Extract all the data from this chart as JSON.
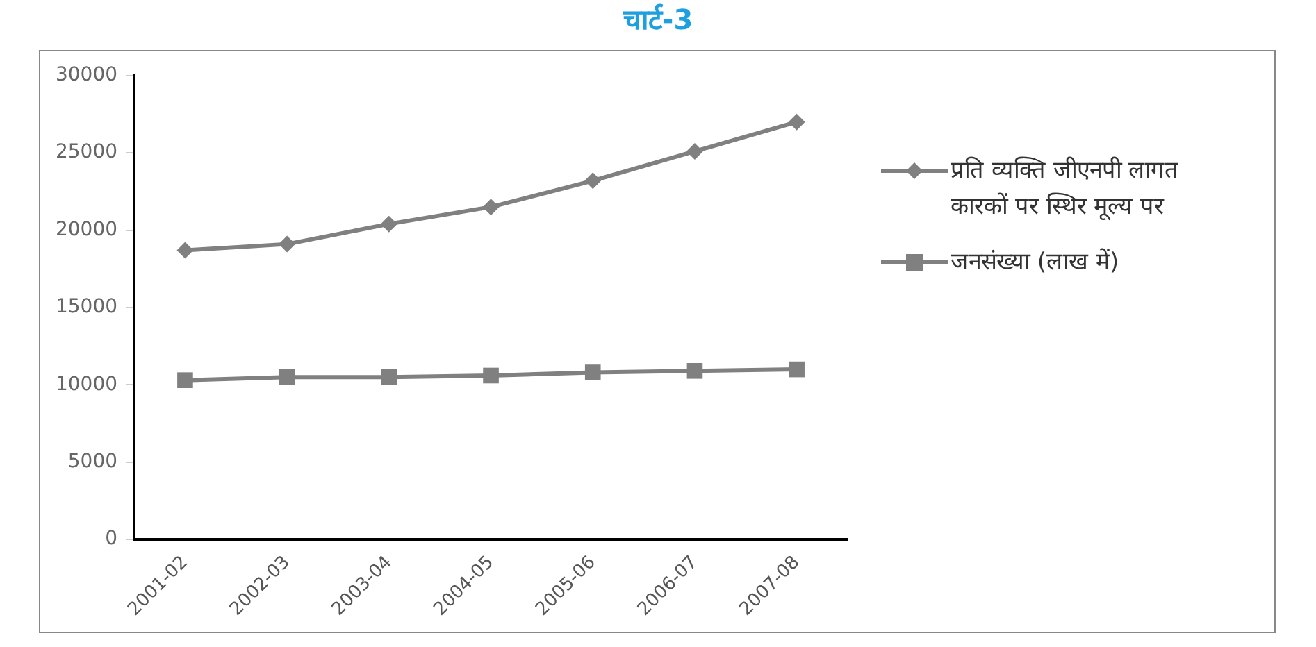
{
  "chart_data": {
    "type": "line",
    "title": "चार्ट-3",
    "categories": [
      "2001-02",
      "2002-03",
      "2003-04",
      "2004-05",
      "2005-06",
      "2006-07",
      "2007-08"
    ],
    "series": [
      {
        "name": "प्रति व्यक्ति जीएनपी लागत कारकों पर स्थिर मूल्य पर",
        "color": "#808080",
        "marker": "diamond",
        "values": [
          18700,
          19100,
          20400,
          21500,
          23200,
          25100,
          27000
        ]
      },
      {
        "name": "जनसंख्या (लाख में)",
        "color": "#808080",
        "marker": "square",
        "values": [
          10300,
          10500,
          10500,
          10600,
          10800,
          10900,
          11000
        ]
      }
    ],
    "ylim": [
      0,
      30000
    ],
    "yticks": [
      0,
      5000,
      10000,
      15000,
      20000,
      25000,
      30000
    ],
    "grid": false,
    "legend": "right",
    "line_style": "solid"
  }
}
